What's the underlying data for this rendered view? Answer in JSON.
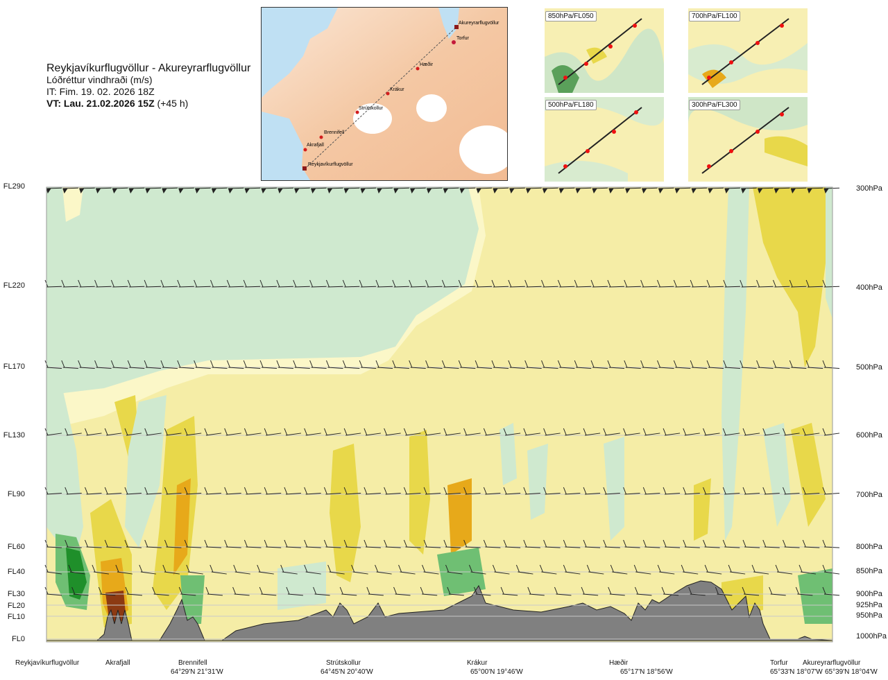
{
  "title": {
    "route": "Reykjavíkurflugvöllur - Akureyrarflugvöllur",
    "quantity": "Lóðréttur vindhraði (m/s)",
    "issue": "IT: Fim. 19. 02. 2026 18Z",
    "valid_bold": "VT: Lau. 21.02.2026 15Z",
    "valid_lead": "(+45 h)"
  },
  "mini_maps": [
    {
      "label": "850hPa/FL050"
    },
    {
      "label": "700hPa/FL100"
    },
    {
      "label": "500hPa/FL180"
    },
    {
      "label": "300hPa/FL300"
    }
  ],
  "route_map": {
    "stations": [
      "Akureyrarflugvöllur",
      "Torfur",
      "Hæðir",
      "Krákur",
      "Strútskollur",
      "Brennifell",
      "Akrafjall",
      "Reykjavíkurflugvöllur"
    ]
  },
  "chart_data": {
    "type": "heatmap",
    "title": "Lóðréttur vindhraði (m/s)",
    "flight_levels": [
      "FL290",
      "FL220",
      "FL170",
      "FL130",
      "FL90",
      "FL60",
      "FL40",
      "FL30",
      "FL20",
      "FL10",
      "FL0"
    ],
    "pressure_levels": [
      "300hPa",
      "400hPa",
      "500hPa",
      "600hPa",
      "700hPa",
      "800hPa",
      "850hPa",
      "900hPa",
      "925hPa",
      "950hPa",
      "1000hPa"
    ],
    "pressure_values_hpa": [
      300,
      400,
      500,
      600,
      700,
      800,
      850,
      900,
      925,
      950,
      1000
    ],
    "stations": [
      {
        "name": "Reykjavíkurflugvöllur",
        "coord": ""
      },
      {
        "name": "Akrafjall",
        "coord": ""
      },
      {
        "name": "Brennifell",
        "coord": "64°29'N 21°31'W"
      },
      {
        "name": "Strútskollur",
        "coord": "64°45'N 20°40'W"
      },
      {
        "name": "Krákur",
        "coord": "65°00'N 19°46'W"
      },
      {
        "name": "Hæðir",
        "coord": "65°17'N 18°56'W"
      },
      {
        "name": "Torfur",
        "coord": "65°33'N 18°07'W"
      },
      {
        "name": "Akureyrarflugvöllur",
        "coord": "65°39'N 18°04'W"
      }
    ],
    "colors": {
      "strong_down": "#1f8f2a",
      "mod_down": "#6fbf73",
      "weak_down": "#a8d8a8",
      "very_weak_down": "#cfe9cf",
      "neutral": "#fbf7c8",
      "weak_up": "#f5eda6",
      "mod_up": "#e8d84a",
      "strong_up": "#e7a91a",
      "very_strong_up": "#8c3a12",
      "terrain": "#808080"
    }
  }
}
